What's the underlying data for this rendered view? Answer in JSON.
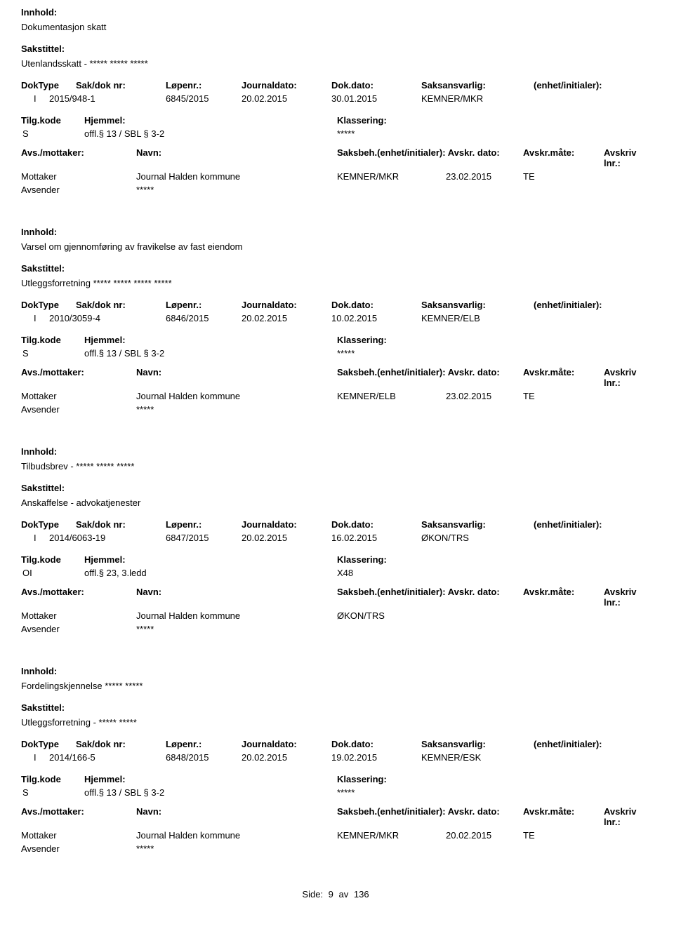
{
  "labels": {
    "innhold": "Innhold:",
    "sakstittel": "Sakstittel:",
    "doktype": "DokType",
    "sakdok": "Sak/dok nr:",
    "lopenr": "Løpenr.:",
    "journaldato": "Journaldato:",
    "dokdato": "Dok.dato:",
    "saksansvarlig": "Saksansvarlig:",
    "enhet": "(enhet/initialer):",
    "tilgkode": "Tilg.kode",
    "hjemmel": "Hjemmel:",
    "klassering": "Klassering:",
    "avsmottaker": "Avs./mottaker:",
    "navn": "Navn:",
    "saksbeh_full": "Saksbeh.(enhet/initialer):",
    "avskrdato": "Avskr. dato:",
    "avskrmate": "Avskr.måte:",
    "avskrivlnr": "Avskriv lnr.:",
    "mottaker": "Mottaker",
    "avsender": "Avsender",
    "side": "Side:",
    "av": "av"
  },
  "footer": {
    "page": "9",
    "total": "136"
  },
  "entries": [
    {
      "innhold": "Dokumentasjon skatt",
      "sakstittel": "Utenlandsskatt - ***** ***** *****",
      "doktype": "I",
      "sakdok": "2015/948-1",
      "lopenr": "6845/2015",
      "journaldato": "20.02.2015",
      "dokdato": "30.01.2015",
      "saksansvarlig": "KEMNER/MKR",
      "tilgkode": "S",
      "hjemmel": "offl.§ 13 / SBL § 3-2",
      "klassering": "*****",
      "mottaker_navn": "Journal Halden kommune",
      "saksbeh": "KEMNER/MKR",
      "avskrdato": "23.02.2015",
      "avskrmate": "TE",
      "avsender_navn": "*****"
    },
    {
      "innhold": "Varsel om gjennomføring av fravikelse av fast eiendom",
      "sakstittel": "Utleggsforretning ***** ***** ***** *****",
      "doktype": "I",
      "sakdok": "2010/3059-4",
      "lopenr": "6846/2015",
      "journaldato": "20.02.2015",
      "dokdato": "10.02.2015",
      "saksansvarlig": "KEMNER/ELB",
      "tilgkode": "S",
      "hjemmel": "offl.§ 13 / SBL § 3-2",
      "klassering": "*****",
      "mottaker_navn": "Journal Halden kommune",
      "saksbeh": "KEMNER/ELB",
      "avskrdato": "23.02.2015",
      "avskrmate": "TE",
      "avsender_navn": "*****"
    },
    {
      "innhold": "Tilbudsbrev - *****  ***** *****",
      "sakstittel": "Anskaffelse - advokatjenester",
      "doktype": "I",
      "sakdok": "2014/6063-19",
      "lopenr": "6847/2015",
      "journaldato": "20.02.2015",
      "dokdato": "16.02.2015",
      "saksansvarlig": "ØKON/TRS",
      "tilgkode": "OI",
      "hjemmel": "offl.§ 23, 3.ledd",
      "klassering": "X48",
      "mottaker_navn": "Journal Halden kommune",
      "saksbeh": "ØKON/TRS",
      "avskrdato": "",
      "avskrmate": "",
      "avsender_navn": "*****"
    },
    {
      "innhold": "Fordelingskjennelse ***** *****",
      "sakstittel": "Utleggsforretning - ***** *****",
      "doktype": "I",
      "sakdok": "2014/166-5",
      "lopenr": "6848/2015",
      "journaldato": "20.02.2015",
      "dokdato": "19.02.2015",
      "saksansvarlig": "KEMNER/ESK",
      "tilgkode": "S",
      "hjemmel": "offl.§ 13 / SBL § 3-2",
      "klassering": "*****",
      "mottaker_navn": "Journal Halden kommune",
      "saksbeh": "KEMNER/MKR",
      "avskrdato": "20.02.2015",
      "avskrmate": "TE",
      "avsender_navn": "*****"
    }
  ]
}
